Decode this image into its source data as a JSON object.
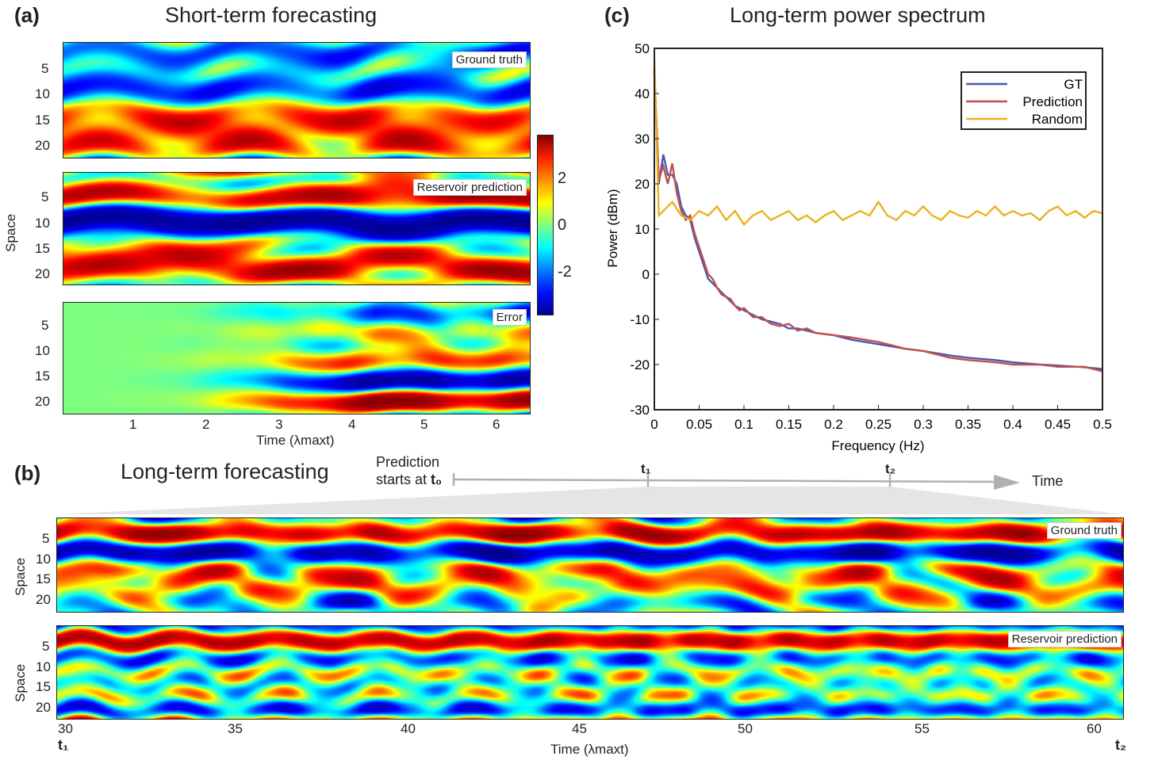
{
  "panel_a": {
    "letter": "(a)",
    "title": "Short-term forecasting",
    "ylabel": "Space",
    "xlabel": "Time (λmaxt)",
    "ytick_labels": [
      "5",
      "10",
      "15",
      "20"
    ],
    "xtick_labels": [
      "1",
      "2",
      "3",
      "4",
      "5",
      "6"
    ],
    "tags": [
      "Ground truth",
      "Reservoir prediction",
      "Error"
    ]
  },
  "colorbar": {
    "tick_labels": [
      "2",
      "0",
      "-2"
    ]
  },
  "panel_b": {
    "letter": "(b)",
    "title": "Long-term forecasting",
    "timeline_note_line1": "Prediction",
    "timeline_note_line2": "starts at",
    "t0": "t₀",
    "t1": "t₁",
    "t2": "t₂",
    "timeline_label": "Time",
    "ylabel": "Space",
    "xlabel": "Time (λmaxt)",
    "ytick_labels": [
      "5",
      "10",
      "15",
      "20"
    ],
    "xtick_labels": [
      "30",
      "35",
      "40",
      "45",
      "50",
      "55",
      "60"
    ],
    "tags": [
      "Ground truth",
      "Reservoir prediction"
    ],
    "corner_t1": "t₁",
    "corner_t2": "t₂"
  },
  "panel_c": {
    "letter": "(c)",
    "title": "Long-term power spectrum"
  },
  "chart_data": [
    {
      "type": "heatmap",
      "title": "Short-term forecasting",
      "xlabel": "Time (λmaxt)",
      "ylabel": "Space",
      "xlim": [
        0,
        6.45
      ],
      "ylim": [
        0,
        22
      ],
      "panels": [
        "Ground truth",
        "Reservoir prediction",
        "Error"
      ],
      "colorbar_range": [
        -3,
        3
      ],
      "colorbar_ticks": [
        2,
        0,
        -2
      ],
      "colormap": [
        "#00008f",
        "#0050ff",
        "#00ffff",
        "#7fff7f",
        "#ffff00",
        "#ff5000",
        "#800000"
      ]
    },
    {
      "type": "heatmap",
      "title": "Long-term forecasting",
      "xlabel": "Time (λmaxt)",
      "ylabel": "Space",
      "xlim": [
        29.7,
        60.8
      ],
      "ylim": [
        0,
        22
      ],
      "panels": [
        "Ground truth",
        "Reservoir prediction"
      ]
    },
    {
      "type": "line",
      "title": "Long-term power spectrum",
      "xlabel": "Frequency (Hz)",
      "ylabel": "Power (dBm)",
      "xlim": [
        0,
        0.5
      ],
      "ylim": [
        -30,
        50
      ],
      "xticks": [
        0,
        0.05,
        0.1,
        0.15,
        0.2,
        0.25,
        0.3,
        0.35,
        0.4,
        0.45,
        0.5
      ],
      "xtick_labels": [
        "0",
        "0.05",
        "0.1",
        "0.15",
        "0.2",
        "0.25",
        "0.3",
        "0.35",
        "0.4",
        "0.45",
        "0.5"
      ],
      "yticks": [
        -30,
        -20,
        -10,
        0,
        10,
        20,
        30,
        40,
        50
      ],
      "ytick_labels": [
        "-30",
        "-20",
        "-10",
        "0",
        "10",
        "20",
        "30",
        "40",
        "50"
      ],
      "legend_position": "top-right",
      "series": [
        {
          "name": "GT",
          "color": "#4a57b3",
          "x": [
            0,
            0.005,
            0.01,
            0.015,
            0.02,
            0.025,
            0.03,
            0.035,
            0.04,
            0.045,
            0.05,
            0.055,
            0.06,
            0.065,
            0.07,
            0.075,
            0.08,
            0.085,
            0.09,
            0.095,
            0.1,
            0.11,
            0.12,
            0.13,
            0.14,
            0.15,
            0.16,
            0.17,
            0.18,
            0.2,
            0.22,
            0.25,
            0.28,
            0.3,
            0.33,
            0.35,
            0.38,
            0.4,
            0.43,
            0.45,
            0.48,
            0.5
          ],
          "values": [
            45,
            20,
            26.5,
            22,
            22,
            20,
            15,
            13,
            12,
            8,
            5,
            2,
            -1,
            -2,
            -3,
            -4,
            -5,
            -6,
            -7,
            -7.5,
            -8,
            -9,
            -10,
            -10.5,
            -11,
            -12,
            -12,
            -12.5,
            -13,
            -13.5,
            -14.5,
            -15.5,
            -16.5,
            -17,
            -18,
            -18.5,
            -19,
            -19.5,
            -20,
            -20.2,
            -20.6,
            -21
          ]
        },
        {
          "name": "Prediction",
          "color": "#c0504d",
          "x": [
            0,
            0.005,
            0.01,
            0.015,
            0.02,
            0.025,
            0.03,
            0.035,
            0.04,
            0.045,
            0.05,
            0.055,
            0.06,
            0.065,
            0.07,
            0.075,
            0.08,
            0.085,
            0.09,
            0.095,
            0.1,
            0.11,
            0.12,
            0.13,
            0.14,
            0.15,
            0.16,
            0.17,
            0.18,
            0.2,
            0.22,
            0.25,
            0.28,
            0.3,
            0.33,
            0.35,
            0.38,
            0.4,
            0.43,
            0.45,
            0.48,
            0.5
          ],
          "values": [
            45,
            21,
            24,
            20,
            24.5,
            18,
            14,
            12,
            13,
            9,
            6,
            3,
            0,
            -1,
            -3,
            -4.5,
            -5,
            -5.5,
            -7,
            -8,
            -7.5,
            -9.5,
            -9.5,
            -11,
            -11.5,
            -11,
            -12.5,
            -12,
            -13,
            -13.5,
            -14,
            -15,
            -16.5,
            -17,
            -18.5,
            -19,
            -19.5,
            -20,
            -20,
            -20.5,
            -20.5,
            -21.5
          ]
        },
        {
          "name": "Random",
          "color": "#edb120",
          "x": [
            0,
            0.005,
            0.01,
            0.02,
            0.03,
            0.04,
            0.05,
            0.06,
            0.07,
            0.08,
            0.09,
            0.1,
            0.11,
            0.12,
            0.13,
            0.14,
            0.15,
            0.16,
            0.17,
            0.18,
            0.19,
            0.2,
            0.21,
            0.22,
            0.23,
            0.24,
            0.25,
            0.26,
            0.27,
            0.28,
            0.29,
            0.3,
            0.31,
            0.32,
            0.33,
            0.34,
            0.35,
            0.36,
            0.37,
            0.38,
            0.39,
            0.4,
            0.41,
            0.42,
            0.43,
            0.44,
            0.45,
            0.46,
            0.47,
            0.48,
            0.49,
            0.5
          ],
          "values": [
            48,
            13,
            14,
            16,
            13,
            12,
            14,
            13,
            15,
            12,
            14,
            11,
            13,
            14,
            12,
            13,
            14,
            12,
            13,
            11.5,
            13,
            14,
            12,
            13,
            14,
            13,
            16,
            13,
            12,
            14,
            13,
            15,
            13,
            12,
            14,
            13,
            12.5,
            14,
            13,
            15,
            13,
            14,
            13,
            13.5,
            12,
            14,
            15,
            13,
            14,
            12.5,
            14,
            13.5
          ]
        }
      ]
    }
  ]
}
